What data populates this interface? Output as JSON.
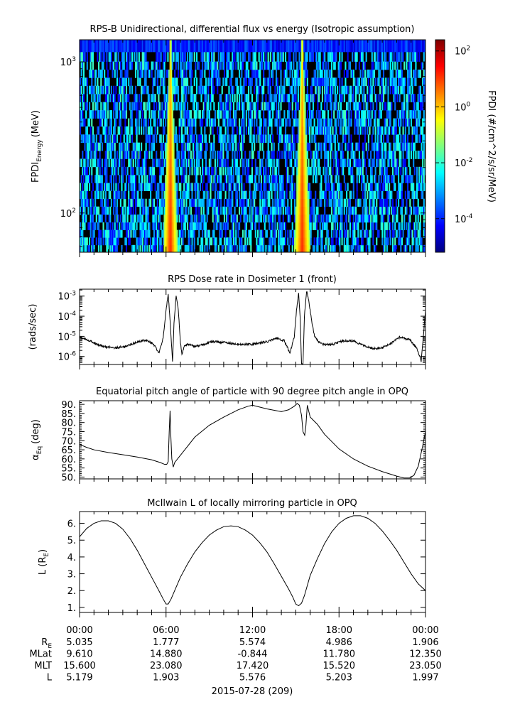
{
  "chart_data": [
    {
      "type": "heatmap",
      "title": "RPS-B  Unidirectional, differential flux vs energy (Isotropic assumption)",
      "ylabel_main": "FPDI",
      "ylabel_sub": "Energy",
      "ylabel_unit": "(MeV)",
      "yscale": "log",
      "ylim": [
        55,
        1400
      ],
      "y_ticks": [
        {
          "base": "10",
          "exp": "2",
          "value": 100
        },
        {
          "base": "10",
          "exp": "3",
          "value": 1000
        }
      ],
      "energy_bins": [
        58,
        65,
        73,
        82,
        92,
        104,
        117,
        132,
        149,
        168,
        190,
        215,
        243,
        275,
        311,
        352,
        398,
        450,
        510,
        577,
        653,
        739,
        836,
        946,
        1070,
        1270
      ],
      "time_range_hours": [
        0,
        24
      ],
      "enhancement_bands_hours": [
        {
          "center_hours": 6.3,
          "low_energy_half_width_hours": 0.5,
          "high_energy_half_width_hours": 0.08
        },
        {
          "center_hours": 15.45,
          "low_energy_half_width_hours": 0.55,
          "high_energy_half_width_hours": 0.08
        }
      ],
      "colorbar": {
        "label": "FPDI (#/cm^2/s/sr/MeV)",
        "scale": "log",
        "range_exp": [
          -5.2,
          2.4
        ],
        "ticks": [
          {
            "base": "10",
            "exp": "2",
            "value": 100
          },
          {
            "base": "10",
            "exp": "0",
            "value": 1
          },
          {
            "base": "10",
            "exp": "-2",
            "value": 0.01
          },
          {
            "base": "10",
            "exp": "-4",
            "value": 0.0001
          }
        ],
        "colors": [
          "#00007f",
          "#0000ff",
          "#007fff",
          "#00ffff",
          "#7fff7f",
          "#ffff00",
          "#ff7f00",
          "#ff0000",
          "#7f0000"
        ]
      }
    },
    {
      "type": "line",
      "title": "RPS  Dose rate in Dosimeter 1 (front)",
      "ylabel": "(rads/sec)",
      "yscale": "log",
      "ylim": [
        4e-07,
        0.0022
      ],
      "y_ticks": [
        {
          "base": "10",
          "exp": "-3",
          "value": 0.001
        },
        {
          "base": "10",
          "exp": "-4",
          "value": 0.0001
        },
        {
          "base": "10",
          "exp": "-5",
          "value": 1e-05
        },
        {
          "base": "10",
          "exp": "-6",
          "value": 1e-06
        }
      ],
      "x_hours": [
        0.0,
        0.6,
        1.2,
        1.8,
        2.5,
        3.2,
        3.9,
        4.6,
        5.1,
        5.5,
        5.8,
        6.0,
        6.15,
        6.3,
        6.45,
        6.55,
        6.7,
        6.85,
        7.0,
        7.1,
        7.25,
        7.5,
        8.0,
        8.5,
        9.2,
        10.0,
        11.0,
        12.0,
        13.0,
        13.7,
        14.2,
        14.6,
        14.9,
        15.05,
        15.2,
        15.3,
        15.4,
        15.5,
        15.6,
        15.75,
        15.9,
        16.1,
        16.3,
        16.6,
        17.0,
        17.6,
        18.3,
        19.0,
        19.7,
        20.3,
        20.9,
        21.5,
        22.2,
        22.9,
        23.4,
        23.7,
        23.85,
        24.0
      ],
      "values": [
        9e-06,
        6.5e-06,
        4e-06,
        3e-06,
        2.7e-06,
        3.2e-06,
        5e-06,
        6.5e-06,
        4.5e-06,
        1.5e-06,
        8e-06,
        0.0002,
        0.0012,
        4e-05,
        5e-07,
        4e-05,
        0.0011,
        0.0002,
        5e-06,
        1.2e-06,
        3e-06,
        4e-06,
        3.2e-06,
        3.8e-06,
        5.5e-06,
        5e-06,
        4e-06,
        4e-06,
        5.5e-06,
        8e-06,
        6e-06,
        1.5e-06,
        1e-05,
        0.0002,
        0.0014,
        0.0001,
        4e-07,
        4e-07,
        0.0001,
        0.0018,
        0.0006,
        6e-05,
        1e-05,
        5e-06,
        3.8e-06,
        4e-06,
        6e-06,
        6e-06,
        3.5e-06,
        2.5e-06,
        2.6e-06,
        4e-06,
        9e-06,
        7e-06,
        2.5e-06,
        6e-07,
        1e-05,
        0.0002
      ]
    },
    {
      "type": "line",
      "title": "Equatorial pitch angle of particle with 90 degree pitch angle in OPQ",
      "ylabel": "α",
      "ylabel_sub": "Eq",
      "ylabel_unit": "(deg)",
      "ylim": [
        49,
        92
      ],
      "y_ticks": [
        50,
        55,
        60,
        65,
        70,
        75,
        80,
        85,
        90
      ],
      "y_tick_labels": [
        "50.",
        "55.",
        "60.",
        "65.",
        "70.",
        "75.",
        "80.",
        "85.",
        "90."
      ],
      "x_hours": [
        0.0,
        0.5,
        1.0,
        2.0,
        3.0,
        4.0,
        5.0,
        5.6,
        5.9,
        6.05,
        6.15,
        6.22,
        6.28,
        6.33,
        6.4,
        6.5,
        6.6,
        7.0,
        7.5,
        8.0,
        9.0,
        10.0,
        11.0,
        11.7,
        12.0,
        13.0,
        14.0,
        14.5,
        14.9,
        15.1,
        15.25,
        15.4,
        15.5,
        15.62,
        15.7,
        15.8,
        16.0,
        16.5,
        17.0,
        18.0,
        19.0,
        20.0,
        21.0,
        22.0,
        22.5,
        22.9,
        23.2,
        23.5,
        23.8,
        24.0
      ],
      "values": [
        68,
        66.3,
        65,
        63.5,
        62.3,
        61,
        59.5,
        58,
        57,
        57,
        58.5,
        75,
        86.5,
        73,
        60,
        55.5,
        58,
        62,
        67,
        72,
        78.5,
        83,
        87,
        89,
        89.5,
        87.5,
        86,
        87,
        89,
        90.5,
        89.5,
        84,
        75,
        73,
        78,
        89.5,
        83,
        79,
        73.5,
        65.5,
        60,
        56,
        53,
        50.5,
        49.5,
        49.5,
        51,
        56,
        67,
        75
      ]
    },
    {
      "type": "line",
      "title": "McIlwain L of locally mirroring particle in OPQ",
      "ylabel": "L (R",
      "ylabel_sub": "E",
      "ylabel_unit": ")",
      "ylim": [
        0.7,
        6.7
      ],
      "y_ticks": [
        1,
        2,
        3,
        4,
        5,
        6
      ],
      "y_tick_labels": [
        "1.",
        "2.",
        "3.",
        "4.",
        "5.",
        "6."
      ],
      "x_hours": [
        0.0,
        0.5,
        1.0,
        1.5,
        2.0,
        2.5,
        3.0,
        3.5,
        4.0,
        4.5,
        5.0,
        5.5,
        5.8,
        6.0,
        6.15,
        6.35,
        6.6,
        7.0,
        7.5,
        8.0,
        8.5,
        9.0,
        9.5,
        10.0,
        10.5,
        11.0,
        11.5,
        12.0,
        12.5,
        13.0,
        13.5,
        14.0,
        14.5,
        14.8,
        15.0,
        15.2,
        15.4,
        15.6,
        15.8,
        16.0,
        16.5,
        17.0,
        17.5,
        18.0,
        18.5,
        19.0,
        19.5,
        20.0,
        20.5,
        21.0,
        21.5,
        22.0,
        22.5,
        23.0,
        23.5,
        24.0
      ],
      "values": [
        5.2,
        5.7,
        6.0,
        6.15,
        6.15,
        6.0,
        5.65,
        5.1,
        4.4,
        3.6,
        2.8,
        2.0,
        1.5,
        1.2,
        1.2,
        1.5,
        2.0,
        2.8,
        3.6,
        4.3,
        4.85,
        5.3,
        5.6,
        5.8,
        5.85,
        5.8,
        5.6,
        5.3,
        4.85,
        4.3,
        3.6,
        2.85,
        2.1,
        1.6,
        1.2,
        1.1,
        1.25,
        1.7,
        2.3,
        2.9,
        3.9,
        4.8,
        5.5,
        6.0,
        6.3,
        6.45,
        6.45,
        6.3,
        6.0,
        5.55,
        5.0,
        4.4,
        3.7,
        3.0,
        2.4,
        2.0
      ]
    }
  ],
  "time_axis": {
    "tick_labels": [
      "00:00",
      "06:00",
      "12:00",
      "18:00",
      "00:00"
    ],
    "minor_ticks_per_hour": 1,
    "date_label": "2015-07-28 (209)",
    "ephemeris_rows": [
      {
        "label": "R",
        "label_sub": "E",
        "values": [
          "5.035",
          "1.777",
          "5.574",
          "4.986",
          "1.906"
        ]
      },
      {
        "label": "MLat",
        "label_sub": "",
        "values": [
          "9.610",
          "14.880",
          "-0.844",
          "11.780",
          "12.350"
        ]
      },
      {
        "label": "MLT",
        "label_sub": "",
        "values": [
          "15.600",
          "23.080",
          "17.420",
          "15.520",
          "23.050"
        ]
      },
      {
        "label": "L",
        "label_sub": "",
        "values": [
          "5.179",
          "1.903",
          "5.576",
          "5.203",
          "1.997"
        ]
      }
    ]
  }
}
